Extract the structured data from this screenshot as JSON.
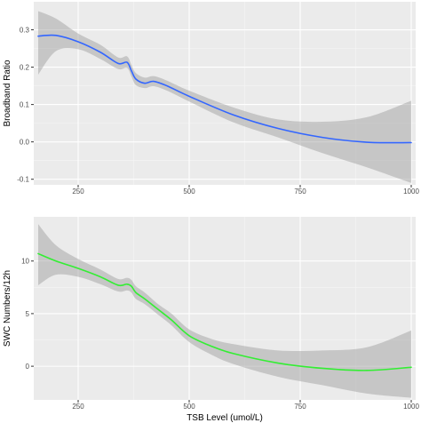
{
  "chart_data": [
    {
      "type": "line",
      "panel": "top",
      "xlabel": "",
      "ylabel": "Broadband Ratio",
      "xlim": [
        150,
        1010
      ],
      "ylim": [
        -0.115,
        0.375
      ],
      "x_ticks": [
        {
          "value": 250,
          "label": "250"
        },
        {
          "value": 500,
          "label": "500"
        },
        {
          "value": 750,
          "label": "750"
        },
        {
          "value": 1000,
          "label": "1000"
        }
      ],
      "y_ticks": [
        {
          "value": -0.1,
          "label": "-0.1"
        },
        {
          "value": 0.0,
          "label": "0.0"
        },
        {
          "value": 0.1,
          "label": "0.1"
        },
        {
          "value": 0.2,
          "label": "0.2"
        },
        {
          "value": 0.3,
          "label": "0.3"
        }
      ],
      "line_color": "#3366ff",
      "band_color": "#999999",
      "grid": true,
      "series": [
        {
          "x": [
            160,
            200,
            250,
            300,
            340,
            360,
            370,
            380,
            400,
            420,
            450,
            500,
            600,
            700,
            800,
            900,
            1000
          ],
          "y": [
            0.283,
            0.285,
            0.268,
            0.24,
            0.21,
            0.213,
            0.19,
            0.168,
            0.157,
            0.162,
            0.15,
            0.122,
            0.072,
            0.036,
            0.012,
            -0.001,
            -0.002
          ],
          "lower": [
            0.18,
            0.243,
            0.248,
            0.222,
            0.195,
            0.198,
            0.175,
            0.152,
            0.144,
            0.149,
            0.137,
            0.108,
            0.052,
            0.012,
            -0.03,
            -0.068,
            -0.11
          ],
          "upper": [
            0.35,
            0.33,
            0.29,
            0.26,
            0.226,
            0.229,
            0.206,
            0.184,
            0.172,
            0.176,
            0.164,
            0.137,
            0.092,
            0.06,
            0.054,
            0.066,
            0.11
          ]
        }
      ]
    },
    {
      "type": "line",
      "panel": "bottom",
      "xlabel": "TSB Level (umol/L)",
      "ylabel": "SWC Numbers/12h",
      "xlim": [
        150,
        1010
      ],
      "ylim": [
        -3.2,
        14.2
      ],
      "x_ticks": [
        {
          "value": 250,
          "label": "250"
        },
        {
          "value": 500,
          "label": "500"
        },
        {
          "value": 750,
          "label": "750"
        },
        {
          "value": 1000,
          "label": "1000"
        }
      ],
      "y_ticks": [
        {
          "value": 0,
          "label": "0"
        },
        {
          "value": 5,
          "label": "5"
        },
        {
          "value": 10,
          "label": "10"
        }
      ],
      "line_color": "#33ee33",
      "band_color": "#999999",
      "grid": true,
      "series": [
        {
          "x": [
            160,
            200,
            250,
            300,
            340,
            360,
            370,
            380,
            400,
            430,
            460,
            500,
            550,
            600,
            700,
            800,
            900,
            1000
          ],
          "y": [
            10.7,
            10.0,
            9.3,
            8.5,
            7.7,
            7.8,
            7.6,
            7.0,
            6.4,
            5.4,
            4.4,
            2.9,
            1.9,
            1.2,
            0.3,
            -0.2,
            -0.4,
            -0.1
          ],
          "lower": [
            7.7,
            8.7,
            8.5,
            7.8,
            7.1,
            7.2,
            7.0,
            6.4,
            5.9,
            4.9,
            3.9,
            2.3,
            1.1,
            0.2,
            -1.0,
            -1.8,
            -2.6,
            -3.0
          ],
          "upper": [
            13.5,
            11.5,
            10.2,
            9.2,
            8.3,
            8.4,
            8.2,
            7.6,
            7.0,
            5.9,
            5.0,
            3.5,
            2.6,
            2.1,
            1.5,
            1.5,
            1.8,
            3.4
          ]
        }
      ]
    }
  ]
}
